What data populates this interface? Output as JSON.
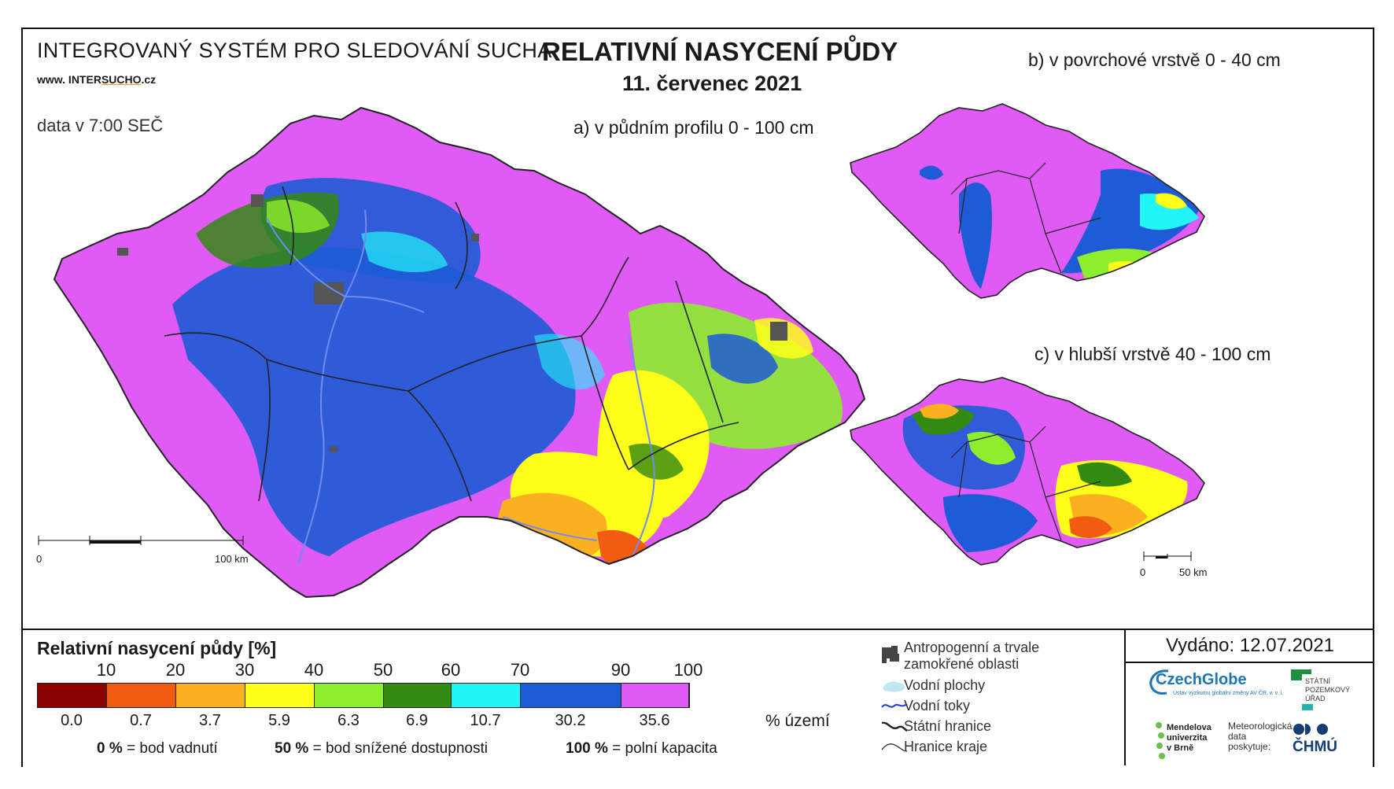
{
  "header": {
    "system_title": "INTEGROVANÝ SYSTÉM PRO SLEDOVÁNÍ SUCHA",
    "website_prefix": "www. INTER",
    "website_highlight": "SUCHO",
    "website_suffix": ".cz",
    "data_time": "data v 7:00 SEČ",
    "main_title": "RELATIVNÍ NASYCENÍ PŮDY",
    "date": "11. červenec 2021"
  },
  "maps": {
    "a": {
      "label": "a) v půdním profilu 0 - 100 cm",
      "scale_start": "0",
      "scale_end": "100 km"
    },
    "b": {
      "label": "b) v povrchové vrstvě 0 - 40 cm"
    },
    "c": {
      "label": "c) v hlubší vrstvě 40 - 100 cm",
      "scale_start": "0",
      "scale_end": "50 km"
    }
  },
  "legend": {
    "title": "Relativní nasycení půdy [%]",
    "thresholds": [
      "10",
      "20",
      "30",
      "40",
      "50",
      "60",
      "70",
      "90",
      "100"
    ],
    "classes": [
      {
        "color": "#8b0000",
        "share": "0.0"
      },
      {
        "color": "#f25c12",
        "share": "0.7"
      },
      {
        "color": "#fbb020",
        "share": "3.7"
      },
      {
        "color": "#ffff1a",
        "share": "5.9"
      },
      {
        "color": "#8cee2c",
        "share": "6.3"
      },
      {
        "color": "#338a12",
        "share": "6.9"
      },
      {
        "color": "#22f4f8",
        "share": "10.7"
      },
      {
        "color": "#1f5bd6",
        "share": "30.2"
      },
      {
        "color": "#e05bf5",
        "share": "35.6"
      }
    ],
    "share_unit": "% území",
    "notes": [
      {
        "value": "0 %",
        "text": "= bod vadnutí"
      },
      {
        "value": "50 %",
        "text": "= bod snížené dostupnosti"
      },
      {
        "value": "100 %",
        "text": "= polní kapacita"
      }
    ]
  },
  "symbols": {
    "anthropogenic_line1": "Antropogenní a trvale",
    "anthropogenic_line2": "zamokřené oblasti",
    "water_bodies": "Vodní plochy",
    "rivers": "Vodní toky",
    "state_border": "Státní hranice",
    "region_border": "Hranice kraje"
  },
  "credits": {
    "issued": "Vydáno: 12.07.2021",
    "czechglobe": "CzechGlobe",
    "czechglobe_sub": "Ústav výzkumu globální změny AV ČR, v. v. i.",
    "spu_line1": "STÁTNÍ",
    "spu_line2": "POZEMKOVÝ",
    "spu_line3": "ÚŘAD",
    "mendel_line1": "Mendelova",
    "mendel_line2": "univerzita",
    "mendel_line3": "v Brně",
    "meteo_line1": "Meteorologická",
    "meteo_line2": "data",
    "meteo_line3": "poskytuje:",
    "chmu": "ČHMÚ"
  },
  "colors": {
    "magenta": "#e05bf5",
    "blue": "#1f5bd6",
    "cyan": "#22f4f8",
    "dkgreen": "#338a12",
    "green": "#8cee2c",
    "yellow": "#ffff1a",
    "orange": "#fbb020",
    "red": "#f25c12",
    "darkred": "#8b0000",
    "gray": "#555555",
    "river": "#6f8bf0"
  }
}
